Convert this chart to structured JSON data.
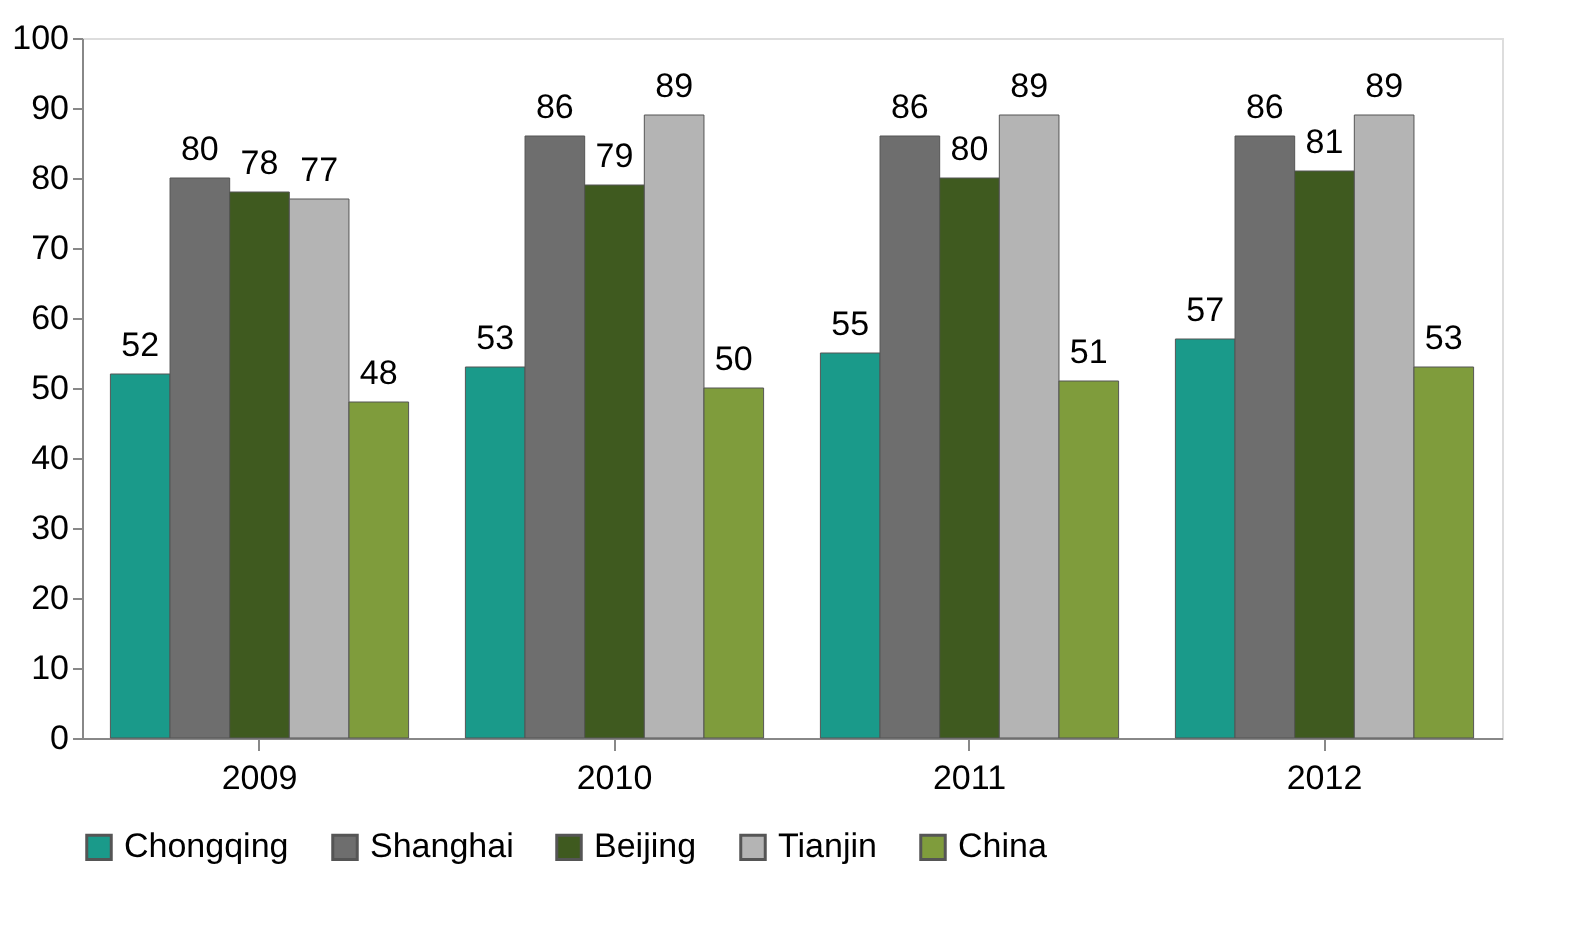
{
  "chart_data": {
    "type": "bar",
    "categories": [
      "2009",
      "2010",
      "2011",
      "2012"
    ],
    "series": [
      {
        "name": "Chongqing",
        "color": "#1a9a8a",
        "values": [
          52,
          53,
          55,
          57
        ]
      },
      {
        "name": "Shanghai",
        "color": "#6e6e6e",
        "values": [
          80,
          86,
          86,
          86
        ]
      },
      {
        "name": "Beijing",
        "color": "#3f5a1f",
        "values": [
          78,
          79,
          80,
          81
        ]
      },
      {
        "name": "Tianjin",
        "color": "#b4b4b4",
        "values": [
          77,
          89,
          89,
          89
        ]
      },
      {
        "name": "China",
        "color": "#7f9c3c",
        "values": [
          48,
          50,
          51,
          53
        ]
      }
    ],
    "ylim": [
      0,
      100
    ],
    "yticks": [
      0,
      10,
      20,
      30,
      40,
      50,
      60,
      70,
      80,
      90,
      100
    ],
    "grid": false,
    "legend": "bottom",
    "data_labels": true
  }
}
